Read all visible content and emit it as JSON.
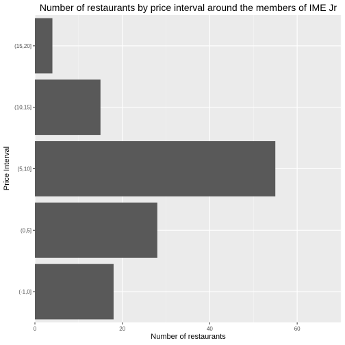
{
  "chart_data": {
    "type": "bar",
    "orientation": "horizontal",
    "title": "Number of restaurants by price interval around the members of IME Jr",
    "xlabel": "Number of restaurants",
    "ylabel": "Price Interval",
    "categories": [
      "(-1,0]",
      "(0,5]",
      "(5,10]",
      "(10,15]",
      "(15,20]"
    ],
    "values": [
      18,
      28,
      55,
      15,
      4
    ],
    "xlim": [
      0,
      70
    ],
    "xticks": [
      0,
      20,
      40,
      60
    ],
    "grid": true,
    "colors": {
      "bar": "#595959",
      "panel": "#ebebeb",
      "grid_major": "#ffffff",
      "grid_minor": "#f5f5f5"
    }
  }
}
